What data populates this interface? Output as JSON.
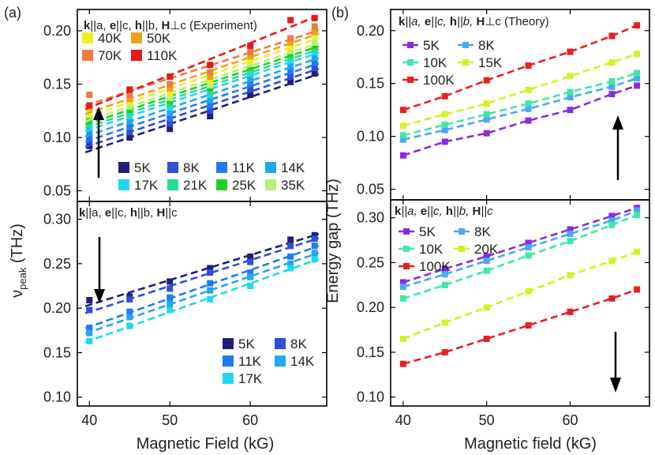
{
  "panel_letters": {
    "a": "(a)",
    "b": "(b)"
  },
  "axis_labels": {
    "left_x": "Magnetic Field (kG)",
    "left_y": "ν",
    "left_y_sub": "peak",
    "left_y_unit": " (THz)",
    "right_x": "Magnetic field (kG)",
    "right_y": "Energy gap (THz)"
  },
  "panel_titles": {
    "a_top": {
      "k": "k",
      "kv": "||a, ",
      "e": "e",
      "ev": "||c, ",
      "h": "h",
      "hv": "||b, ",
      "H": "H",
      "Hv": "⊥c (Experiment)"
    },
    "a_bottom": {
      "k": "k",
      "kv": "||a, ",
      "e": "e",
      "ev": "||c, ",
      "h": "h",
      "hv": "||b, ",
      "H": "H",
      "Hv": "||c"
    },
    "b_top": {
      "k": "k",
      "kv": "||a, ",
      "e": "e",
      "ev": "||c, ",
      "h": "h",
      "hv": "||b, ",
      "H": "H",
      "Hv": "⊥c (Theory)"
    },
    "b_bottom": {
      "k": "k",
      "kv": "||a, ",
      "e": "e",
      "ev": "||c, ",
      "h": "h",
      "hv": "||b, ",
      "H": "H",
      "Hv": "||c"
    }
  },
  "colors": {
    "5K": "#1f1f7a",
    "8K": "#2e4fd6",
    "11K": "#1f7bf0",
    "14K": "#22a6ee",
    "17K": "#22d6f0",
    "21K": "#25e08f",
    "25K": "#22d022",
    "35K": "#b8f07a",
    "40K": "#f0f020",
    "50K": "#f0a020",
    "70K": "#f07a40",
    "110K": "#e81818",
    "th5K": "#8a2be2",
    "th8K": "#4aa8f0",
    "th10K": "#3ee8a8",
    "th15K": "#d8f020",
    "th20K": "#d8f020",
    "th100K": "#e82020"
  },
  "chart_data": [
    {
      "id": "a_top",
      "type": "scatter",
      "xlim": [
        38.5,
        69.5
      ],
      "ylim": [
        0.04,
        0.22
      ],
      "xticks": [
        40,
        50,
        60
      ],
      "yticks": [
        0.05,
        0.1,
        0.15,
        0.2
      ],
      "fit": "dashed-linear",
      "x": [
        40,
        45,
        50,
        55,
        60,
        65,
        68
      ],
      "series": [
        {
          "name": "5K",
          "color_key": "5K",
          "values": [
            0.092,
            0.1,
            0.108,
            0.12,
            0.14,
            0.152,
            0.16
          ]
        },
        {
          "name": "8K",
          "color_key": "8K",
          "values": [
            0.097,
            0.105,
            0.113,
            0.125,
            0.145,
            0.157,
            0.165
          ]
        },
        {
          "name": "11K",
          "color_key": "11K",
          "values": [
            0.102,
            0.11,
            0.118,
            0.13,
            0.15,
            0.162,
            0.17
          ]
        },
        {
          "name": "14K",
          "color_key": "14K",
          "values": [
            0.107,
            0.115,
            0.123,
            0.135,
            0.155,
            0.167,
            0.175
          ]
        },
        {
          "name": "17K",
          "color_key": "17K",
          "values": [
            0.112,
            0.12,
            0.128,
            0.14,
            0.16,
            0.172,
            0.18
          ]
        },
        {
          "name": "21K",
          "color_key": "21K",
          "values": [
            0.115,
            0.123,
            0.131,
            0.143,
            0.163,
            0.175,
            0.183
          ]
        },
        {
          "name": "25K",
          "color_key": "25K",
          "values": [
            0.118,
            0.126,
            0.134,
            0.146,
            0.166,
            0.178,
            0.186
          ]
        },
        {
          "name": "35K",
          "color_key": "35K",
          "values": [
            0.121,
            0.129,
            0.137,
            0.149,
            0.169,
            0.181,
            0.189
          ]
        },
        {
          "name": "40K",
          "color_key": "40K",
          "values": [
            0.125,
            0.133,
            0.142,
            0.153,
            0.172,
            0.185,
            0.195
          ]
        },
        {
          "name": "50K",
          "color_key": "50K",
          "values": [
            0.128,
            0.136,
            0.146,
            0.157,
            0.176,
            0.189,
            0.199
          ]
        },
        {
          "name": "70K",
          "color_key": "70K",
          "values": [
            0.14,
            0.14,
            0.15,
            0.161,
            0.18,
            0.193,
            0.204
          ]
        },
        {
          "name": "110K",
          "color_key": "110K",
          "values": [
            0.13,
            0.145,
            0.157,
            0.168,
            0.186,
            0.21,
            0.212
          ]
        }
      ],
      "legend_top": {
        "columns": 2,
        "items": [
          "40K",
          "50K",
          "70K",
          "110K"
        ]
      },
      "legend_bottom": {
        "columns": 4,
        "items": [
          "5K",
          "8K",
          "11K",
          "14K",
          "17K",
          "21K",
          "25K",
          "35K"
        ]
      }
    },
    {
      "id": "a_bottom",
      "type": "scatter",
      "xlim": [
        38.5,
        69.5
      ],
      "ylim": [
        0.09,
        0.32
      ],
      "xticks": [
        40,
        50,
        60
      ],
      "yticks": [
        0.1,
        0.15,
        0.2,
        0.25,
        0.3
      ],
      "fit": "dashed-linear",
      "x": [
        40,
        45,
        50,
        55,
        60,
        65,
        68
      ],
      "series": [
        {
          "name": "5K",
          "color_key": "5K",
          "values": [
            0.209,
            0.213,
            0.23,
            0.245,
            0.258,
            0.277,
            0.282
          ]
        },
        {
          "name": "8K",
          "color_key": "8K",
          "values": [
            0.198,
            0.21,
            0.222,
            0.24,
            0.252,
            0.27,
            0.278
          ]
        },
        {
          "name": "11K",
          "color_key": "11K",
          "values": [
            0.178,
            0.196,
            0.212,
            0.228,
            0.24,
            0.258,
            0.27
          ]
        },
        {
          "name": "14K",
          "color_key": "14K",
          "values": [
            0.172,
            0.19,
            0.205,
            0.22,
            0.235,
            0.25,
            0.262
          ]
        },
        {
          "name": "17K",
          "color_key": "17K",
          "values": [
            0.163,
            0.18,
            0.198,
            0.21,
            0.225,
            0.245,
            0.255
          ]
        }
      ],
      "legend": {
        "columns": 2,
        "items": [
          "5K",
          "8K",
          "11K",
          "14K",
          "17K"
        ]
      }
    },
    {
      "id": "b_top",
      "type": "line",
      "xlim": [
        38.5,
        69.5
      ],
      "ylim": [
        0.04,
        0.22
      ],
      "xticks": [
        40,
        50,
        60
      ],
      "yticks": [
        0.05,
        0.1,
        0.15,
        0.2
      ],
      "x": [
        40,
        45,
        50,
        55,
        60,
        65,
        68
      ],
      "series": [
        {
          "name": "5K",
          "color_key": "th5K",
          "values": [
            0.082,
            0.095,
            0.103,
            0.115,
            0.125,
            0.14,
            0.148
          ]
        },
        {
          "name": "8K",
          "color_key": "th8K",
          "values": [
            0.097,
            0.106,
            0.116,
            0.126,
            0.137,
            0.147,
            0.155
          ]
        },
        {
          "name": "10K",
          "color_key": "th10K",
          "values": [
            0.101,
            0.111,
            0.121,
            0.131,
            0.142,
            0.152,
            0.16
          ]
        },
        {
          "name": "15K",
          "color_key": "th15K",
          "values": [
            0.11,
            0.121,
            0.131,
            0.144,
            0.157,
            0.17,
            0.178
          ]
        },
        {
          "name": "100K",
          "color_key": "th100K",
          "values": [
            0.125,
            0.138,
            0.153,
            0.167,
            0.18,
            0.195,
            0.205
          ]
        }
      ],
      "legend": {
        "columns": 2,
        "items": [
          "5K",
          "8K",
          "10K",
          "15K",
          "100K"
        ]
      }
    },
    {
      "id": "b_bottom",
      "type": "line",
      "xlim": [
        38.5,
        69.5
      ],
      "ylim": [
        0.09,
        0.32
      ],
      "xticks": [
        40,
        50,
        60
      ],
      "yticks": [
        0.1,
        0.15,
        0.2,
        0.25,
        0.3
      ],
      "x": [
        40,
        45,
        50,
        55,
        60,
        65,
        68
      ],
      "series": [
        {
          "name": "5K",
          "color_key": "th5K",
          "values": [
            0.228,
            0.243,
            0.257,
            0.272,
            0.287,
            0.302,
            0.311
          ]
        },
        {
          "name": "8K",
          "color_key": "th8K",
          "values": [
            0.223,
            0.237,
            0.252,
            0.267,
            0.282,
            0.297,
            0.308
          ]
        },
        {
          "name": "10K",
          "color_key": "th10K",
          "values": [
            0.21,
            0.225,
            0.241,
            0.258,
            0.274,
            0.292,
            0.303
          ]
        },
        {
          "name": "20K",
          "color_key": "th20K",
          "values": [
            0.165,
            0.183,
            0.2,
            0.218,
            0.236,
            0.252,
            0.262
          ]
        },
        {
          "name": "100K",
          "color_key": "th100K",
          "values": [
            0.137,
            0.15,
            0.165,
            0.18,
            0.195,
            0.21,
            0.22
          ]
        }
      ],
      "legend": {
        "columns": 2,
        "items": [
          "5K",
          "8K",
          "10K",
          "20K",
          "100K"
        ]
      }
    }
  ]
}
